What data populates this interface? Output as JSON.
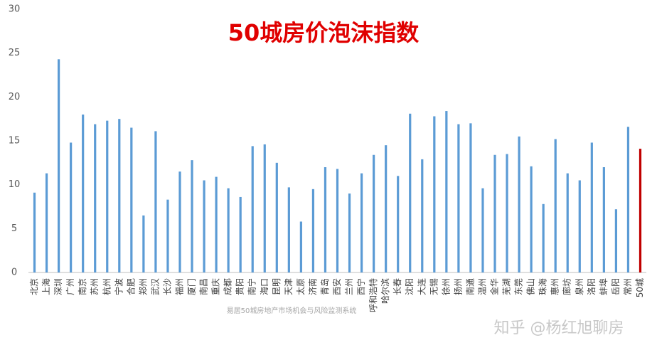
{
  "chart_data": {
    "type": "bar",
    "title": "50城房价泡沫指数",
    "categories": [
      "北京",
      "上海",
      "深圳",
      "广州",
      "南京",
      "苏州",
      "杭州",
      "宁波",
      "合肥",
      "郑州",
      "武汉",
      "长沙",
      "福州",
      "厦门",
      "南昌",
      "重庆",
      "成都",
      "贵阳",
      "南宁",
      "海口",
      "昆明",
      "天津",
      "太原",
      "济南",
      "青岛",
      "西安",
      "兰州",
      "西宁",
      "呼和浩特",
      "哈尔滨",
      "长春",
      "沈阳",
      "大连",
      "无锡",
      "徐州",
      "扬州",
      "南通",
      "温州",
      "金华",
      "芜湖",
      "东莞",
      "佛山",
      "珠海",
      "惠州",
      "廊坊",
      "泉州",
      "洛阳",
      "蚌埠",
      "岳阳",
      "常州",
      "50城"
    ],
    "values": [
      9.1,
      11.3,
      24.3,
      14.8,
      18.0,
      16.9,
      17.3,
      17.5,
      16.5,
      6.5,
      16.1,
      8.3,
      11.5,
      12.8,
      10.5,
      10.9,
      9.6,
      8.6,
      14.4,
      14.6,
      12.5,
      9.7,
      5.8,
      9.5,
      12.0,
      11.8,
      9.0,
      11.3,
      13.4,
      14.5,
      11.0,
      18.1,
      12.9,
      17.8,
      18.4,
      16.9,
      17.0,
      9.6,
      13.4,
      13.5,
      15.5,
      12.1,
      7.8,
      15.2,
      11.3,
      10.5,
      14.8,
      12.0,
      7.2,
      16.6,
      14.1
    ],
    "colors": [
      "#5b9bd5",
      "#5b9bd5",
      "#5b9bd5",
      "#5b9bd5",
      "#5b9bd5",
      "#5b9bd5",
      "#5b9bd5",
      "#5b9bd5",
      "#5b9bd5",
      "#5b9bd5",
      "#5b9bd5",
      "#5b9bd5",
      "#5b9bd5",
      "#5b9bd5",
      "#5b9bd5",
      "#5b9bd5",
      "#5b9bd5",
      "#5b9bd5",
      "#5b9bd5",
      "#5b9bd5",
      "#5b9bd5",
      "#5b9bd5",
      "#5b9bd5",
      "#5b9bd5",
      "#5b9bd5",
      "#5b9bd5",
      "#5b9bd5",
      "#5b9bd5",
      "#5b9bd5",
      "#5b9bd5",
      "#5b9bd5",
      "#5b9bd5",
      "#5b9bd5",
      "#5b9bd5",
      "#5b9bd5",
      "#5b9bd5",
      "#5b9bd5",
      "#5b9bd5",
      "#5b9bd5",
      "#5b9bd5",
      "#5b9bd5",
      "#5b9bd5",
      "#5b9bd5",
      "#5b9bd5",
      "#5b9bd5",
      "#5b9bd5",
      "#5b9bd5",
      "#5b9bd5",
      "#5b9bd5",
      "#5b9bd5",
      "#c00000"
    ],
    "ylim": [
      0,
      30
    ],
    "yticks": [
      0,
      5,
      10,
      15,
      20,
      25,
      30
    ],
    "grid": false,
    "source": "易居50城房地产市场机会与风险监测系统",
    "watermark": "知乎 @杨红旭聊房"
  }
}
